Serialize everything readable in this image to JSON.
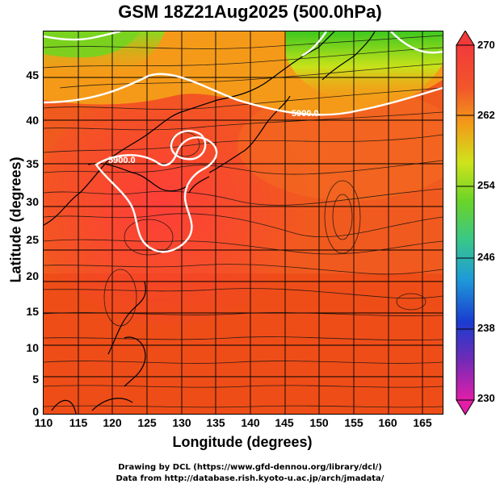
{
  "title": "GSM 18Z21Aug2025 (500.0hPa)",
  "x_axis": {
    "label": "Longitude (degrees)",
    "ticks": [
      "110",
      "115",
      "120",
      "125",
      "130",
      "135",
      "140",
      "145",
      "150",
      "155",
      "160",
      "165"
    ]
  },
  "y_axis": {
    "label": "Latitude  (degrees)",
    "ticks": [
      "0",
      "5",
      "10",
      "15",
      "20",
      "25",
      "30",
      "35",
      "40",
      "45"
    ]
  },
  "contour_labels": [
    "5900.0",
    "5900.0"
  ],
  "colorbar": {
    "ticks": [
      "270",
      "262",
      "254",
      "246",
      "238",
      "230"
    ]
  },
  "credits": [
    "Drawing by DCL (https://www.gfd-dennou.org/library/dcl/)",
    "Data from http://database.rish.kyoto-u.ac.jp/arch/jmadata/"
  ],
  "colors": {
    "warm_field": "#f2501c",
    "high_field": "#ff3a3a",
    "cool_field": "#5fd72a",
    "contour": "#ffffff"
  }
}
